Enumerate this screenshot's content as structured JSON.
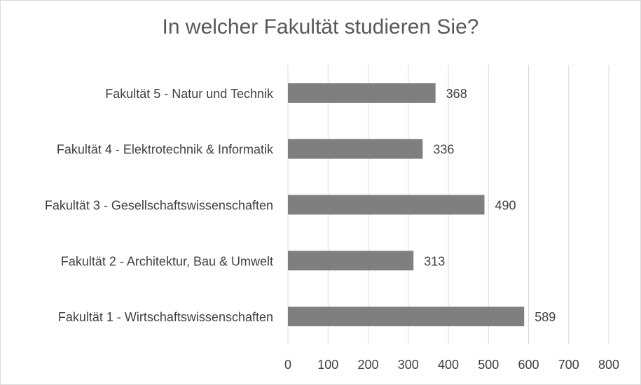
{
  "chart_data": {
    "type": "bar",
    "orientation": "horizontal",
    "title": "In welcher Fakultät studieren Sie?",
    "categories": [
      "Fakultät 1 - Wirtschaftswissenschaften",
      "Fakultät 2 - Architektur, Bau & Umwelt",
      "Fakultät 3 - Gesellschaftswissenschaften",
      "Fakultät 4 - Elektrotechnik & Informatik",
      "Fakultät 5 - Natur und Technik"
    ],
    "values": [
      589,
      313,
      490,
      336,
      368
    ],
    "xlim": [
      0,
      800
    ],
    "xticks": [
      0,
      100,
      200,
      300,
      400,
      500,
      600,
      700,
      800
    ],
    "grid": true,
    "legend": "none",
    "bar_color": "#7f7f7f"
  }
}
